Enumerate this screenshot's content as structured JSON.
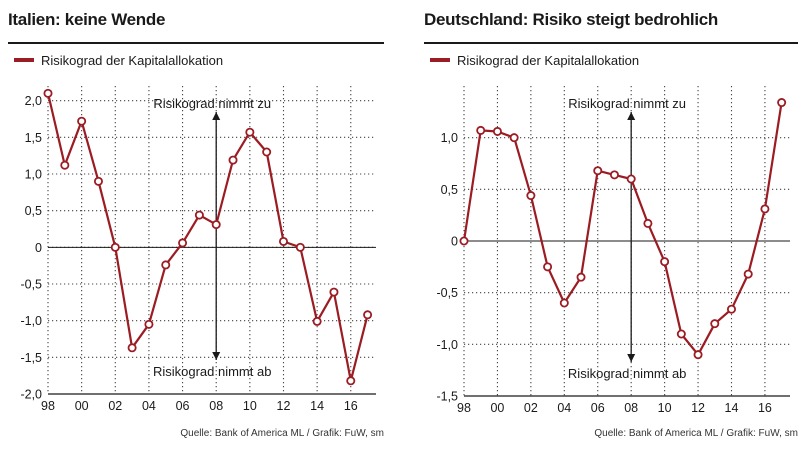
{
  "colors": {
    "series": "#9b1c23",
    "text": "#1a1a1a",
    "grid": "#444444"
  },
  "chart_data": [
    {
      "type": "line",
      "title": "Italien: keine Wende",
      "legend": "Risikograd der Kapitalallokation",
      "annotation_up": "Risikograd nimmt zu",
      "annotation_down": "Risikograd nimmt ab",
      "source": "Quelle: Bank of America ML / Grafik: FuW, sm",
      "xlabels": [
        "98",
        "00",
        "02",
        "04",
        "06",
        "08",
        "10",
        "12",
        "14",
        "16"
      ],
      "xlabel_values": [
        1998,
        2000,
        2002,
        2004,
        2006,
        2008,
        2010,
        2012,
        2014,
        2016
      ],
      "yticks": [
        2.0,
        1.5,
        1.0,
        0.5,
        0,
        -0.5,
        -1.0,
        -1.5,
        -2.0
      ],
      "ytick_labels": [
        "2,0",
        "1,5",
        "1,0",
        "0,5",
        "0",
        "-0,5",
        "-1,0",
        "-1,5",
        "-2,0"
      ],
      "ylim": [
        -2.0,
        2.2
      ],
      "xlim": [
        1998,
        2017.5
      ],
      "x": [
        1998,
        1999,
        2000,
        2001,
        2002,
        2003,
        2004,
        2005,
        2006,
        2007,
        2008,
        2009,
        2010,
        2011,
        2012,
        2013,
        2014,
        2015,
        2016,
        2017
      ],
      "values": [
        2.1,
        1.12,
        1.72,
        0.9,
        0.0,
        -1.37,
        -1.05,
        -0.24,
        0.06,
        0.44,
        0.31,
        1.19,
        1.57,
        1.3,
        0.08,
        0.0,
        -1.01,
        -0.61,
        -1.82,
        -0.92
      ]
    },
    {
      "type": "line",
      "title": "Deutschland: Risiko steigt bedrohlich",
      "legend": "Risikograd der Kapitalallokation",
      "annotation_up": "Risikograd nimmt zu",
      "annotation_down": "Risikograd nimmt ab",
      "source": "Quelle: Bank of America ML / Grafik: FuW, sm",
      "xlabels": [
        "98",
        "00",
        "02",
        "04",
        "06",
        "08",
        "10",
        "12",
        "14",
        "16"
      ],
      "xlabel_values": [
        1998,
        2000,
        2002,
        2004,
        2006,
        2008,
        2010,
        2012,
        2014,
        2016
      ],
      "yticks": [
        1.0,
        0.5,
        0,
        -0.5,
        -1.0,
        -1.5
      ],
      "ytick_labels": [
        "1,0",
        "0,5",
        "0",
        "-0,5",
        "-1,0",
        "-1,5"
      ],
      "ylim": [
        -1.5,
        1.5
      ],
      "xlim": [
        1998,
        2017.5
      ],
      "x": [
        1998,
        1999,
        2000,
        2001,
        2002,
        2003,
        2004,
        2005,
        2006,
        2007,
        2008,
        2009,
        2010,
        2011,
        2012,
        2013,
        2014,
        2015,
        2016,
        2017
      ],
      "values": [
        0.0,
        1.07,
        1.06,
        1.0,
        0.44,
        -0.25,
        -0.6,
        -0.35,
        0.68,
        0.64,
        0.6,
        0.17,
        -0.2,
        -0.9,
        -1.1,
        -0.8,
        -0.66,
        -0.32,
        0.31,
        1.34
      ]
    }
  ]
}
